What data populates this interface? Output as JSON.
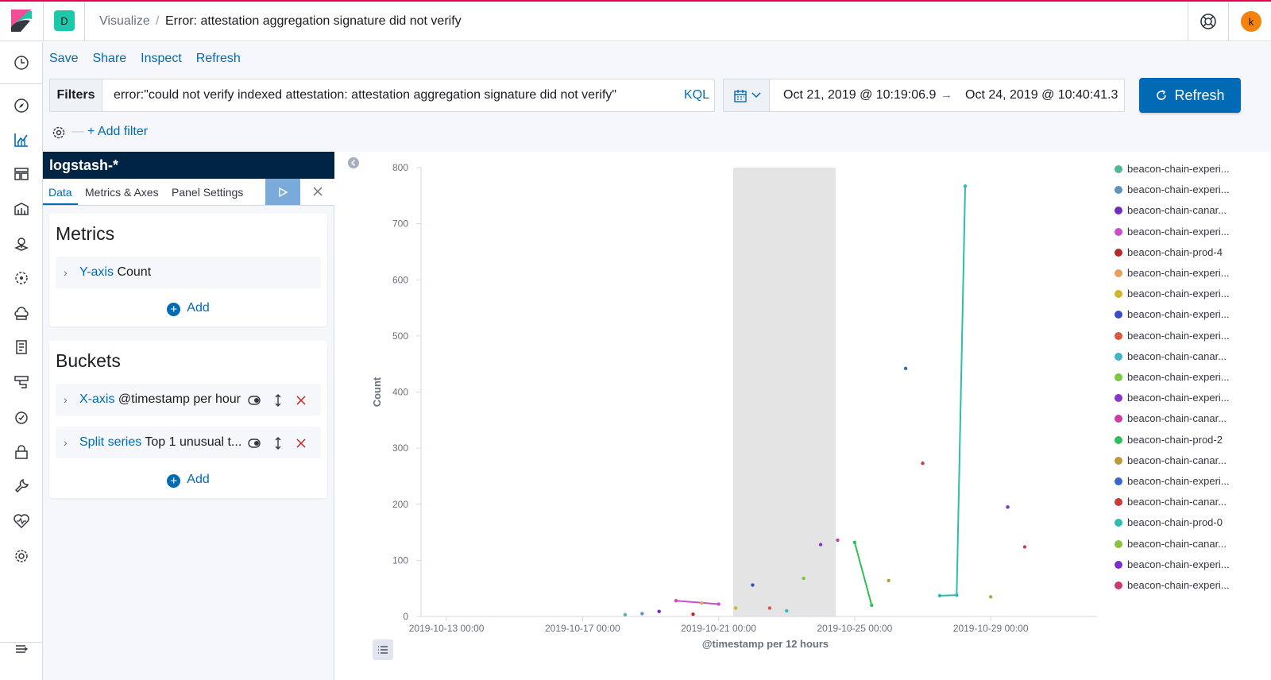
{
  "header": {
    "space_initial": "D",
    "app_name": "Visualize",
    "separator": "/",
    "page_title": "Error: attestation aggregation signature did not verify",
    "avatar_initial": "k"
  },
  "actions": {
    "save": "Save",
    "share": "Share",
    "inspect": "Inspect",
    "refresh": "Refresh"
  },
  "query_bar": {
    "filters_label": "Filters",
    "query": "error:\"could not verify indexed attestation: attestation aggregation signature did not verify\"",
    "language": "KQL",
    "date_start": "Oct 21, 2019 @ 10:19:06.9",
    "date_arrow": "→",
    "date_end": "Oct 24, 2019 @ 10:40:41.3",
    "refresh_button": "Refresh",
    "add_filter": "+ Add filter"
  },
  "editor": {
    "index_pattern": "logstash-*",
    "tabs": [
      "Data",
      "Metrics & Axes",
      "Panel Settings"
    ],
    "metrics_title": "Metrics",
    "metric_type": "Y-axis",
    "metric_desc": "Count",
    "add_label": "Add",
    "buckets_title": "Buckets",
    "bucket1_type": "X-axis",
    "bucket1_desc": "@timestamp per hour",
    "bucket2_type": "Split series",
    "bucket2_desc": "Top 1 unusual t..."
  },
  "chart_data": {
    "type": "line",
    "xlabel": "@timestamp per 12 hours",
    "ylabel": "Count",
    "ylim": [
      0,
      800
    ],
    "yticks": [
      0,
      100,
      200,
      300,
      400,
      500,
      600,
      700,
      800
    ],
    "xlim": [
      "2019-10-12 06:00",
      "2019-11-01 12:00"
    ],
    "xticks": [
      "2019-10-13 00:00",
      "2019-10-17 00:00",
      "2019-10-21 00:00",
      "2019-10-25 00:00",
      "2019-10-29 00:00"
    ],
    "highlight_range": [
      "2019-10-21 10:19",
      "2019-10-24 10:40"
    ],
    "legend_position": "right",
    "series": [
      {
        "name": "beacon-chain-experi...",
        "color": "#54b399",
        "points": [
          [
            "2019-10-18 06:00",
            3
          ]
        ]
      },
      {
        "name": "beacon-chain-experi...",
        "color": "#6092c0",
        "points": [
          [
            "2019-10-18 18:00",
            5
          ]
        ]
      },
      {
        "name": "beacon-chain-canar...",
        "color": "#6d2dbd",
        "points": [
          [
            "2019-10-19 06:00",
            9
          ]
        ]
      },
      {
        "name": "beacon-chain-experi...",
        "color": "#ca4fc9",
        "points": [
          [
            "2019-10-19 18:00",
            28
          ],
          [
            "2019-10-21 00:00",
            22
          ]
        ]
      },
      {
        "name": "beacon-chain-prod-4",
        "color": "#b22a2a",
        "points": [
          [
            "2019-10-20 06:00",
            4
          ]
        ]
      },
      {
        "name": "beacon-chain-experi...",
        "color": "#e7a062",
        "points": [
          [
            "2019-10-20 12:00",
            24
          ]
        ]
      },
      {
        "name": "beacon-chain-experi...",
        "color": "#cfb52a",
        "points": [
          [
            "2019-10-21 12:00",
            15
          ]
        ]
      },
      {
        "name": "beacon-chain-experi...",
        "color": "#3a4bc9",
        "points": [
          [
            "2019-10-22 00:00",
            56
          ]
        ]
      },
      {
        "name": "beacon-chain-experi...",
        "color": "#d9563f",
        "points": [
          [
            "2019-10-22 12:00",
            15
          ]
        ]
      },
      {
        "name": "beacon-chain-canar...",
        "color": "#3fb4c9",
        "points": [
          [
            "2019-10-23 00:00",
            10
          ]
        ]
      },
      {
        "name": "beacon-chain-experi...",
        "color": "#7ac943",
        "points": [
          [
            "2019-10-23 12:00",
            68
          ]
        ]
      },
      {
        "name": "beacon-chain-experi...",
        "color": "#8b35c9",
        "points": [
          [
            "2019-10-24 00:00",
            128
          ]
        ]
      },
      {
        "name": "beacon-chain-canar...",
        "color": "#c93ea6",
        "points": [
          [
            "2019-10-24 12:00",
            136
          ]
        ]
      },
      {
        "name": "beacon-chain-prod-2",
        "color": "#2fbf5a",
        "points": [
          [
            "2019-10-25 00:00",
            132
          ],
          [
            "2019-10-25 12:00",
            20
          ]
        ]
      },
      {
        "name": "beacon-chain-canar...",
        "color": "#c0973a",
        "points": [
          [
            "2019-10-26 00:00",
            64
          ]
        ]
      },
      {
        "name": "beacon-chain-experi...",
        "color": "#3a66c9",
        "points": [
          [
            "2019-10-26 12:00",
            442
          ]
        ]
      },
      {
        "name": "beacon-chain-canar...",
        "color": "#c93a3a",
        "points": [
          [
            "2019-10-27 00:00",
            273
          ]
        ]
      },
      {
        "name": "beacon-chain-prod-0",
        "color": "#2bbfab",
        "points": [
          [
            "2019-10-27 12:00",
            37
          ],
          [
            "2019-10-28 00:00",
            38
          ],
          [
            "2019-10-28 06:00",
            767
          ]
        ]
      },
      {
        "name": "beacon-chain-canar...",
        "color": "#86c23a",
        "points": [
          [
            "2019-10-29 00:00",
            35
          ]
        ]
      },
      {
        "name": "beacon-chain-experi...",
        "color": "#7a30c9",
        "points": [
          [
            "2019-10-29 12:00",
            195
          ]
        ]
      },
      {
        "name": "beacon-chain-experi...",
        "color": "#c93a6f",
        "points": [
          [
            "2019-10-30 00:00",
            124
          ]
        ]
      }
    ]
  }
}
